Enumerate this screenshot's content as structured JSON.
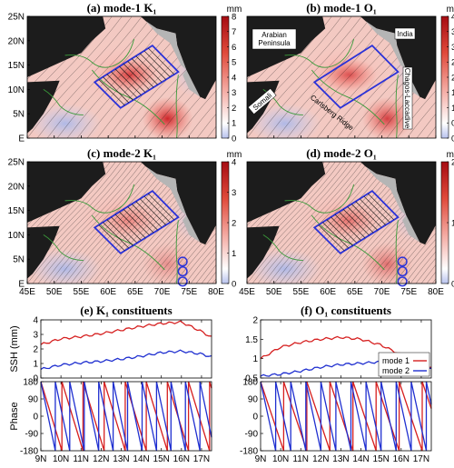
{
  "colors": {
    "mode1": "#d62020",
    "mode2": "#1f2fd0",
    "box": "#2a32d8",
    "land": "#1c1c1c",
    "shelf": "#b5b5b5",
    "isobath": "#3a9a3a",
    "circle": "#2a32d8"
  },
  "chart_data": [
    {
      "type": "heatmap",
      "panel": "a",
      "title": "(a) mode-1 K₁",
      "colorbar_unit": "mm",
      "colorbar_range": [
        0,
        8
      ],
      "colorbar_ticks": [
        "0",
        "1",
        "2",
        "3",
        "4",
        "5",
        "6",
        "7",
        "8"
      ],
      "y_ticks": [
        "E",
        "5N",
        "10N",
        "15N",
        "20N",
        "25N"
      ],
      "x_ticks": [],
      "annotations": []
    },
    {
      "type": "heatmap",
      "panel": "b",
      "title": "(b) mode-1 O₁",
      "colorbar_unit": "mm",
      "colorbar_range": [
        0,
        4
      ],
      "colorbar_ticks": [
        "0",
        "0.5",
        "1",
        "1.5",
        "2",
        "2.5",
        "3",
        "3.5",
        "4"
      ],
      "y_ticks": [],
      "x_ticks": [],
      "annotations": [
        "Arabian",
        "Peninsula",
        "India",
        "Somali",
        "Carlsberg Ridge",
        "Chagos-Laccadive"
      ]
    },
    {
      "type": "heatmap",
      "panel": "c",
      "title": "(c) mode-2 K₁",
      "colorbar_unit": "mm",
      "colorbar_range": [
        0,
        4
      ],
      "colorbar_ticks": [
        "0",
        "1",
        "2",
        "3",
        "4"
      ],
      "y_ticks": [
        "E",
        "5N",
        "10N",
        "15N",
        "20N",
        "25N"
      ],
      "x_ticks": [
        "45E",
        "50E",
        "55E",
        "60E",
        "65E",
        "70E",
        "75E",
        "80E"
      ],
      "annotations": []
    },
    {
      "type": "heatmap",
      "panel": "d",
      "title": "(d) mode-2 O₁",
      "colorbar_unit": "mm",
      "colorbar_range": [
        0,
        2
      ],
      "colorbar_ticks": [
        "0",
        "1",
        "2"
      ],
      "y_ticks": [],
      "x_ticks": [
        "45E",
        "50E",
        "55E",
        "60E",
        "65E",
        "70E",
        "75E",
        "80E"
      ],
      "annotations": []
    },
    {
      "type": "line",
      "panel": "e",
      "title": "(e) K₁ constituents",
      "ylabel": "SSH (mm)",
      "x": [
        9,
        10,
        11,
        12,
        13,
        14,
        15,
        16,
        17,
        17.5
      ],
      "ylim": [
        0,
        4
      ],
      "y_ticks": [
        "0",
        "1",
        "2",
        "3",
        "4"
      ],
      "series": [
        {
          "name": "mode 1",
          "values": [
            2.3,
            2.7,
            2.85,
            3.05,
            3.3,
            3.55,
            3.75,
            3.85,
            3.2,
            2.8
          ]
        },
        {
          "name": "mode 2",
          "values": [
            0.6,
            0.9,
            1.05,
            1.15,
            1.3,
            1.5,
            1.75,
            1.85,
            1.65,
            1.45
          ]
        }
      ]
    },
    {
      "type": "line",
      "panel": "f",
      "title": "(f) O₁ constituents",
      "x": [
        9,
        10,
        11,
        12,
        13,
        14,
        15,
        16,
        17,
        17.5
      ],
      "ylim": [
        0.5,
        2
      ],
      "y_ticks": [
        "0.5",
        "1",
        "1.5",
        "2"
      ],
      "series": [
        {
          "name": "mode 1",
          "values": [
            1.0,
            1.3,
            1.42,
            1.5,
            1.55,
            1.5,
            1.35,
            1.1,
            0.85,
            0.75
          ]
        },
        {
          "name": "mode 2",
          "values": [
            0.55,
            0.6,
            0.68,
            0.78,
            0.85,
            0.88,
            0.92,
            0.93,
            0.85,
            0.72
          ]
        }
      ],
      "legend": [
        "mode 1",
        "mode 2"
      ],
      "legend_position": "lower-right"
    },
    {
      "type": "line",
      "panel": "g",
      "ylabel": "Phase",
      "ylim": [
        -180,
        180
      ],
      "y_ticks": [
        "180",
        "90",
        "0",
        "-90",
        "-180"
      ],
      "x_ticks": [
        "9N",
        "10N",
        "11N",
        "12N",
        "13N",
        "14N",
        "15N",
        "16N",
        "17N"
      ],
      "series": [
        {
          "name": "mode 1",
          "cycle_km_deg": 1.05
        },
        {
          "name": "mode 2",
          "cycle_km_deg": 0.72
        }
      ]
    },
    {
      "type": "line",
      "panel": "h",
      "ylim": [
        -180,
        180
      ],
      "y_ticks": [
        "180",
        "90",
        "0",
        "-90",
        "-180"
      ],
      "x_ticks": [
        "9N",
        "10N",
        "11N",
        "12N",
        "13N",
        "14N",
        "15N",
        "16N",
        "17N"
      ],
      "series": [
        {
          "name": "mode 1",
          "cycle_km_deg": 1.15
        },
        {
          "name": "mode 2",
          "cycle_km_deg": 0.75
        }
      ]
    }
  ]
}
